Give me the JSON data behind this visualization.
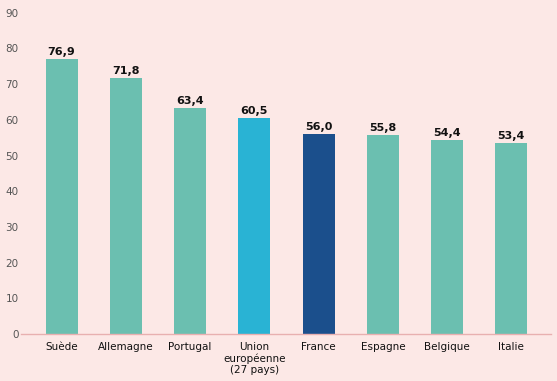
{
  "categories": [
    "Suède",
    "Allemagne",
    "Portugal",
    "Union\neuropéenne\n(27 pays)",
    "France",
    "Espagne",
    "Belgique",
    "Italie"
  ],
  "values": [
    76.9,
    71.8,
    63.4,
    60.5,
    56.0,
    55.8,
    54.4,
    53.4
  ],
  "bar_colors": [
    "#6bbfb0",
    "#6bbfb0",
    "#6bbfb0",
    "#29b3d4",
    "#1b4f8c",
    "#6bbfb0",
    "#6bbfb0",
    "#6bbfb0"
  ],
  "labels": [
    "76,9",
    "71,8",
    "63,4",
    "60,5",
    "56,0",
    "55,8",
    "54,4",
    "53,4"
  ],
  "yticks": [
    0,
    10,
    20,
    30,
    40,
    50,
    60,
    70,
    80,
    90
  ],
  "ylim": [
    0,
    92
  ],
  "background_color": "#fce8e6",
  "plot_bg_color": "#fce8e6",
  "bar_width": 0.5,
  "label_fontsize": 8.0,
  "tick_fontsize": 7.5,
  "label_fontweight": "bold",
  "bottom_spine_color": "#e8b0b0",
  "ytick_color": "#555555",
  "xtick_color": "#111111"
}
